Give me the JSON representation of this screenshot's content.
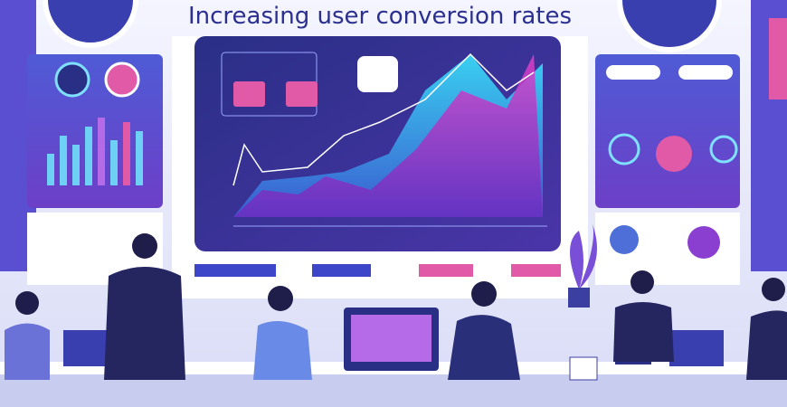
{
  "title": "Increasing user conversion rates"
}
